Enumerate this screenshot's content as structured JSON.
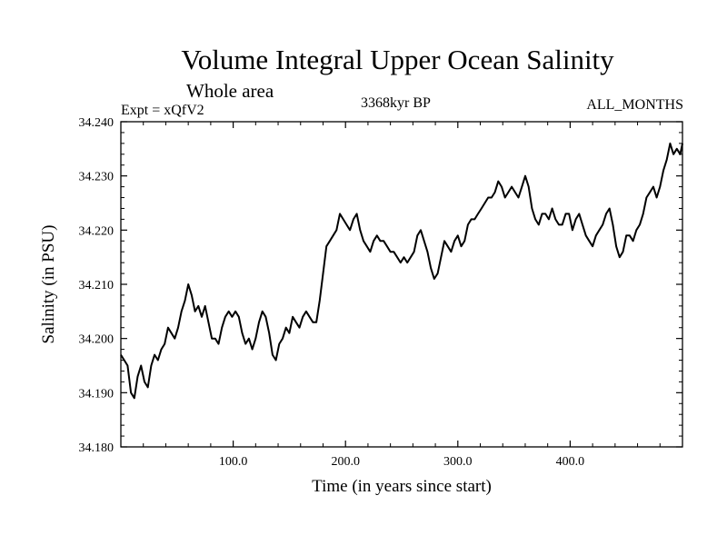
{
  "header": {
    "title": "Volume Integral Upper Ocean Salinity",
    "subtitle": "Whole area",
    "experiment": "Expt = xQfV2",
    "period": "3368kyr BP",
    "months": "ALL_MONTHS"
  },
  "chart_data": {
    "type": "line",
    "title": "Volume Integral Upper Ocean Salinity",
    "subtitle": "Whole area",
    "xlabel": "Time (in years since start)",
    "ylabel": "Salinity (in PSU)",
    "xlim": [
      0,
      500
    ],
    "ylim": [
      34.18,
      34.24
    ],
    "xticks": [
      100,
      200,
      300,
      400
    ],
    "xtick_labels": [
      "100.0",
      "200.0",
      "300.0",
      "400.0"
    ],
    "yticks": [
      34.18,
      34.19,
      34.2,
      34.21,
      34.22,
      34.23,
      34.24
    ],
    "ytick_labels": [
      "34.180",
      "34.190",
      "34.200",
      "34.210",
      "34.220",
      "34.230",
      "34.240"
    ],
    "grid": false,
    "series": [
      {
        "name": "Salinity",
        "x": [
          0,
          3,
          6,
          9,
          12,
          15,
          18,
          21,
          24,
          27,
          30,
          33,
          36,
          39,
          42,
          45,
          48,
          51,
          54,
          57,
          60,
          63,
          66,
          69,
          72,
          75,
          78,
          81,
          84,
          87,
          90,
          93,
          96,
          99,
          102,
          105,
          108,
          111,
          114,
          117,
          120,
          123,
          126,
          129,
          132,
          135,
          138,
          141,
          144,
          147,
          150,
          153,
          156,
          159,
          162,
          165,
          168,
          171,
          174,
          177,
          180,
          183,
          186,
          189,
          192,
          195,
          198,
          201,
          204,
          207,
          210,
          213,
          216,
          219,
          222,
          225,
          228,
          231,
          234,
          237,
          240,
          243,
          246,
          249,
          252,
          255,
          258,
          261,
          264,
          267,
          270,
          273,
          276,
          279,
          282,
          285,
          288,
          291,
          294,
          297,
          300,
          303,
          306,
          309,
          312,
          315,
          318,
          321,
          324,
          327,
          330,
          333,
          336,
          339,
          342,
          345,
          348,
          351,
          354,
          357,
          360,
          363,
          366,
          369,
          372,
          375,
          378,
          381,
          384,
          387,
          390,
          393,
          396,
          399,
          402,
          405,
          408,
          411,
          414,
          417,
          420,
          423,
          426,
          429,
          432,
          435,
          438,
          441,
          444,
          447,
          450,
          453,
          456,
          459,
          462,
          465,
          468,
          471,
          474,
          477,
          480,
          483,
          486,
          489,
          492,
          495,
          498,
          500
        ],
        "values": [
          34.197,
          34.196,
          34.195,
          34.19,
          34.189,
          34.193,
          34.195,
          34.192,
          34.191,
          34.195,
          34.197,
          34.196,
          34.198,
          34.199,
          34.202,
          34.201,
          34.2,
          34.202,
          34.205,
          34.207,
          34.21,
          34.208,
          34.205,
          34.206,
          34.204,
          34.206,
          34.203,
          34.2,
          34.2,
          34.199,
          34.202,
          34.204,
          34.205,
          34.204,
          34.205,
          34.204,
          34.201,
          34.199,
          34.2,
          34.198,
          34.2,
          34.203,
          34.205,
          34.204,
          34.201,
          34.197,
          34.196,
          34.199,
          34.2,
          34.202,
          34.201,
          34.204,
          34.203,
          34.202,
          34.204,
          34.205,
          34.204,
          34.203,
          34.203,
          34.207,
          34.212,
          34.217,
          34.218,
          34.219,
          34.22,
          34.223,
          34.222,
          34.221,
          34.22,
          34.222,
          34.223,
          34.22,
          34.218,
          34.217,
          34.216,
          34.218,
          34.219,
          34.218,
          34.218,
          34.217,
          34.216,
          34.216,
          34.215,
          34.214,
          34.215,
          34.214,
          34.215,
          34.216,
          34.219,
          34.22,
          34.218,
          34.216,
          34.213,
          34.211,
          34.212,
          34.215,
          34.218,
          34.217,
          34.216,
          34.218,
          34.219,
          34.217,
          34.218,
          34.221,
          34.222,
          34.222,
          34.223,
          34.224,
          34.225,
          34.226,
          34.226,
          34.227,
          34.229,
          34.228,
          34.226,
          34.227,
          34.228,
          34.227,
          34.226,
          34.228,
          34.23,
          34.228,
          34.224,
          34.222,
          34.221,
          34.223,
          34.223,
          34.222,
          34.224,
          34.222,
          34.221,
          34.221,
          34.223,
          34.223,
          34.22,
          34.222,
          34.223,
          34.221,
          34.219,
          34.218,
          34.217,
          34.219,
          34.22,
          34.221,
          34.223,
          34.224,
          34.221,
          34.217,
          34.215,
          34.216,
          34.219,
          34.219,
          34.218,
          34.22,
          34.221,
          34.223,
          34.226,
          34.227,
          34.228,
          34.226,
          34.228,
          34.231,
          34.233,
          34.236,
          34.234,
          34.235,
          34.234,
          34.236
        ]
      }
    ]
  }
}
